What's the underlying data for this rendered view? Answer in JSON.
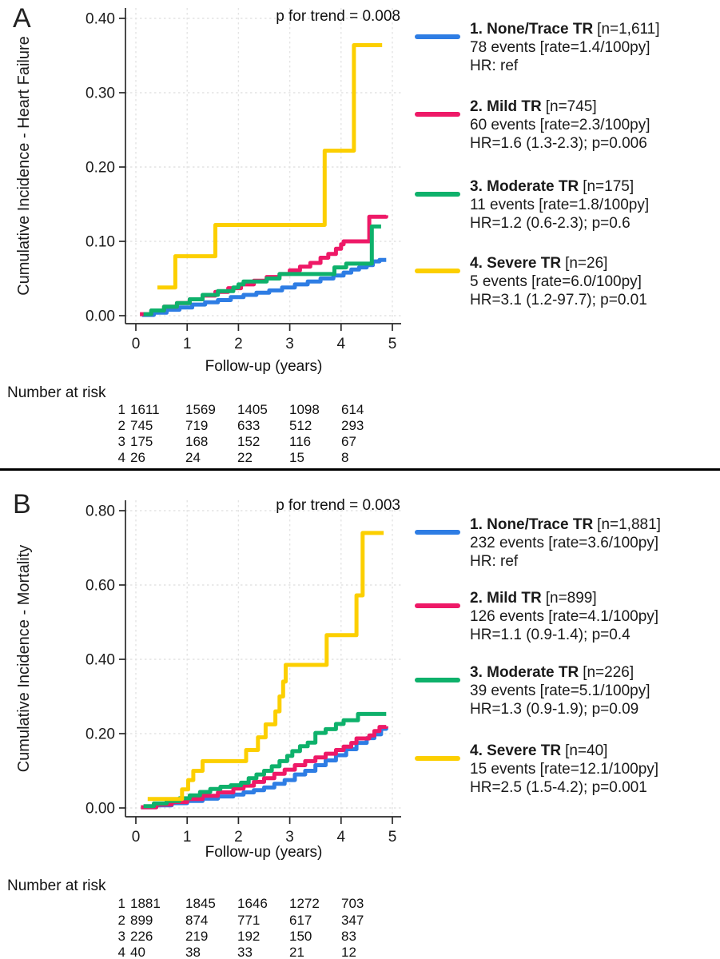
{
  "chart_data": [
    {
      "type": "line",
      "step": true,
      "panel_label": "A",
      "annotation": "p for trend = 0.008",
      "xlabel": "Follow-up (years)",
      "ylabel": "Cumulative Incidence - Heart Failure",
      "xlim": [
        0,
        5.2
      ],
      "ylim": [
        0,
        0.42
      ],
      "xticks": [
        0,
        1,
        2,
        3,
        4,
        5
      ],
      "xtick_labels": [
        "0",
        "1",
        "2",
        "3",
        "4",
        "5"
      ],
      "yticks": [
        0,
        0.1,
        0.2,
        0.3,
        0.4
      ],
      "ytick_labels": [
        "0.00",
        "0.10",
        "0.20",
        "0.30",
        "0.40"
      ],
      "grid": true,
      "legend_position": "right",
      "series": [
        {
          "name": "1. None/Trace TR",
          "n": "[n=1,611]",
          "events": "78 events [rate=1.4/100py]",
          "hr": "HR: ref",
          "color": "#2e7de4",
          "points": [
            [
              0.12,
              0.001
            ],
            [
              0.35,
              0.004
            ],
            [
              0.6,
              0.008
            ],
            [
              0.85,
              0.011
            ],
            [
              1.1,
              0.015
            ],
            [
              1.35,
              0.018
            ],
            [
              1.6,
              0.021
            ],
            [
              1.85,
              0.025
            ],
            [
              2.1,
              0.028
            ],
            [
              2.35,
              0.031
            ],
            [
              2.6,
              0.034
            ],
            [
              2.85,
              0.038
            ],
            [
              3.1,
              0.042
            ],
            [
              3.35,
              0.046
            ],
            [
              3.6,
              0.05
            ],
            [
              3.85,
              0.054
            ],
            [
              4.05,
              0.058
            ],
            [
              4.2,
              0.062
            ],
            [
              4.35,
              0.065
            ],
            [
              4.5,
              0.068
            ],
            [
              4.62,
              0.073
            ],
            [
              4.75,
              0.075
            ],
            [
              4.88,
              0.075
            ]
          ]
        },
        {
          "name": "2. Mild TR",
          "n": "[n=745]",
          "events": "60 events [rate=2.3/100py]",
          "hr": "HR=1.6 (1.3-2.3); p=0.006",
          "color": "#ee1967",
          "points": [
            [
              0.08,
              0.002
            ],
            [
              0.3,
              0.007
            ],
            [
              0.55,
              0.012
            ],
            [
              0.8,
              0.017
            ],
            [
              1.05,
              0.022
            ],
            [
              1.3,
              0.027
            ],
            [
              1.55,
              0.032
            ],
            [
              1.8,
              0.037
            ],
            [
              2.05,
              0.042
            ],
            [
              2.3,
              0.047
            ],
            [
              2.55,
              0.052
            ],
            [
              2.8,
              0.056
            ],
            [
              3.0,
              0.061
            ],
            [
              3.2,
              0.066
            ],
            [
              3.4,
              0.071
            ],
            [
              3.6,
              0.078
            ],
            [
              3.75,
              0.083
            ],
            [
              3.9,
              0.09
            ],
            [
              4.0,
              0.096
            ],
            [
              4.05,
              0.1
            ],
            [
              4.55,
              0.133
            ],
            [
              4.88,
              0.135
            ]
          ]
        },
        {
          "name": "3. Moderate TR",
          "n": "[n=175]",
          "events": "11 events [rate=1.8/100py]",
          "hr": "HR=1.2 (0.6-2.3); p=0.6",
          "color": "#0eb16b",
          "points": [
            [
              0.15,
              0.002
            ],
            [
              0.3,
              0.007
            ],
            [
              0.55,
              0.012
            ],
            [
              0.8,
              0.017
            ],
            [
              1.05,
              0.022
            ],
            [
              1.3,
              0.028
            ],
            [
              1.6,
              0.033
            ],
            [
              1.9,
              0.038
            ],
            [
              2.0,
              0.042
            ],
            [
              2.1,
              0.046
            ],
            [
              2.55,
              0.05
            ],
            [
              2.8,
              0.056
            ],
            [
              3.87,
              0.065
            ],
            [
              4.1,
              0.07
            ],
            [
              4.6,
              0.12
            ],
            [
              4.78,
              0.12
            ]
          ]
        },
        {
          "name": "4. Severe TR",
          "n": "[n=26]",
          "events": "5 events [rate=6.0/100py]",
          "hr": "HR=3.1 (1.2-97.7); p=0.01",
          "color": "#fccf00",
          "points": [
            [
              0.42,
              0.038
            ],
            [
              0.77,
              0.08
            ],
            [
              1.55,
              0.122
            ],
            [
              3.68,
              0.222
            ],
            [
              4.25,
              0.364
            ],
            [
              4.8,
              0.364
            ]
          ]
        }
      ],
      "at_risk": {
        "title": "Number at risk",
        "rows": [
          [
            "1",
            "1611",
            "1569",
            "1405",
            "1098",
            "614"
          ],
          [
            "2",
            "745",
            "719",
            "633",
            "512",
            "293"
          ],
          [
            "3",
            "175",
            "168",
            "152",
            "116",
            "67"
          ],
          [
            "4",
            "26",
            "24",
            "22",
            "15",
            "8"
          ]
        ]
      }
    },
    {
      "type": "line",
      "step": true,
      "panel_label": "B",
      "annotation": "p for trend = 0.003",
      "xlabel": "Follow-up (years)",
      "ylabel": "Cumulative Incidence - Mortality",
      "xlim": [
        0,
        5.2
      ],
      "ylim": [
        0,
        0.84
      ],
      "xticks": [
        0,
        1,
        2,
        3,
        4,
        5
      ],
      "xtick_labels": [
        "0",
        "1",
        "2",
        "3",
        "4",
        "5"
      ],
      "yticks": [
        0,
        0.2,
        0.4,
        0.6,
        0.8
      ],
      "ytick_labels": [
        "0.00",
        "0.20",
        "0.40",
        "0.60",
        "0.80"
      ],
      "grid": true,
      "legend_position": "right",
      "series": [
        {
          "name": "1. None/Trace TR",
          "n": "[n=1,881]",
          "events": "232 events [rate=3.6/100py]",
          "hr": "HR: ref",
          "color": "#2e7de4",
          "points": [
            [
              0.1,
              0.002
            ],
            [
              0.4,
              0.007
            ],
            [
              0.7,
              0.013
            ],
            [
              1.0,
              0.019
            ],
            [
              1.3,
              0.025
            ],
            [
              1.6,
              0.031
            ],
            [
              1.9,
              0.036
            ],
            [
              2.1,
              0.042
            ],
            [
              2.3,
              0.048
            ],
            [
              2.5,
              0.055
            ],
            [
              2.7,
              0.065
            ],
            [
              2.9,
              0.075
            ],
            [
              3.1,
              0.09
            ],
            [
              3.3,
              0.1
            ],
            [
              3.5,
              0.115
            ],
            [
              3.7,
              0.128
            ],
            [
              3.9,
              0.142
            ],
            [
              4.1,
              0.158
            ],
            [
              4.3,
              0.175
            ],
            [
              4.5,
              0.188
            ],
            [
              4.65,
              0.198
            ],
            [
              4.78,
              0.213
            ],
            [
              4.88,
              0.218
            ]
          ]
        },
        {
          "name": "2. Mild TR",
          "n": "[n=899]",
          "events": "126 events [rate=4.1/100py]",
          "hr": "HR=1.1 (0.9-1.4); p=0.4",
          "color": "#ee1967",
          "points": [
            [
              0.1,
              0.002
            ],
            [
              0.4,
              0.009
            ],
            [
              0.7,
              0.016
            ],
            [
              1.0,
              0.024
            ],
            [
              1.3,
              0.033
            ],
            [
              1.6,
              0.042
            ],
            [
              1.9,
              0.052
            ],
            [
              2.1,
              0.06
            ],
            [
              2.3,
              0.07
            ],
            [
              2.5,
              0.08
            ],
            [
              2.7,
              0.092
            ],
            [
              2.9,
              0.103
            ],
            [
              3.1,
              0.115
            ],
            [
              3.3,
              0.126
            ],
            [
              3.5,
              0.136
            ],
            [
              3.7,
              0.146
            ],
            [
              3.9,
              0.156
            ],
            [
              4.05,
              0.165
            ],
            [
              4.2,
              0.175
            ],
            [
              4.3,
              0.187
            ],
            [
              4.55,
              0.195
            ],
            [
              4.65,
              0.207
            ],
            [
              4.75,
              0.218
            ],
            [
              4.88,
              0.22
            ]
          ]
        },
        {
          "name": "3. Moderate TR",
          "n": "[n=226]",
          "events": "39 events [rate=5.1/100py]",
          "hr": "HR=1.3 (0.9-1.9); p=0.09",
          "color": "#0eb16b",
          "points": [
            [
              0.15,
              0.005
            ],
            [
              0.35,
              0.012
            ],
            [
              0.6,
              0.019
            ],
            [
              0.85,
              0.026
            ],
            [
              1.05,
              0.034
            ],
            [
              1.25,
              0.043
            ],
            [
              1.45,
              0.051
            ],
            [
              1.65,
              0.057
            ],
            [
              1.85,
              0.061
            ],
            [
              2.05,
              0.068
            ],
            [
              2.2,
              0.08
            ],
            [
              2.35,
              0.09
            ],
            [
              2.5,
              0.1
            ],
            [
              2.65,
              0.112
            ],
            [
              2.8,
              0.126
            ],
            [
              2.95,
              0.14
            ],
            [
              3.05,
              0.153
            ],
            [
              3.2,
              0.166
            ],
            [
              3.35,
              0.176
            ],
            [
              3.5,
              0.202
            ],
            [
              3.7,
              0.212
            ],
            [
              3.9,
              0.226
            ],
            [
              4.05,
              0.236
            ],
            [
              4.33,
              0.253
            ],
            [
              4.88,
              0.253
            ]
          ]
        },
        {
          "name": "4. Severe TR",
          "n": "[n=40]",
          "events": "15 events [rate=12.1/100py]",
          "hr": "HR=2.5 (1.5-4.2); p=0.001",
          "color": "#fccf00",
          "points": [
            [
              0.23,
              0.024
            ],
            [
              0.9,
              0.05
            ],
            [
              1.02,
              0.075
            ],
            [
              1.12,
              0.1
            ],
            [
              1.3,
              0.126
            ],
            [
              2.15,
              0.156
            ],
            [
              2.38,
              0.19
            ],
            [
              2.53,
              0.225
            ],
            [
              2.72,
              0.26
            ],
            [
              2.8,
              0.3
            ],
            [
              2.87,
              0.34
            ],
            [
              2.92,
              0.385
            ],
            [
              3.72,
              0.465
            ],
            [
              4.3,
              0.572
            ],
            [
              4.42,
              0.74
            ],
            [
              4.83,
              0.74
            ]
          ]
        }
      ],
      "at_risk": {
        "title": "Number at risk",
        "rows": [
          [
            "1",
            "1881",
            "1845",
            "1646",
            "1272",
            "703"
          ],
          [
            "2",
            "899",
            "874",
            "771",
            "617",
            "347"
          ],
          [
            "3",
            "226",
            "219",
            "192",
            "150",
            "83"
          ],
          [
            "4",
            "40",
            "38",
            "33",
            "21",
            "12"
          ]
        ]
      }
    }
  ]
}
